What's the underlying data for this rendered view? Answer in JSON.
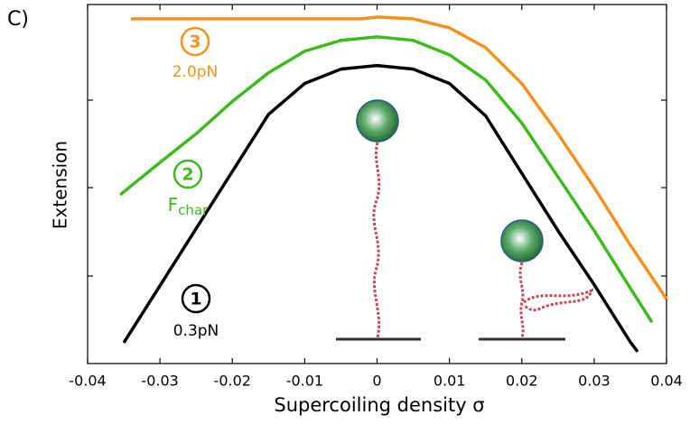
{
  "chart_data": {
    "type": "line",
    "panel_label": "C)",
    "x_label": "Supercoiling density σ",
    "y_label": "Extension",
    "xlim": [
      -0.04,
      0.04
    ],
    "xticks": [
      -0.04,
      -0.03,
      -0.02,
      -0.01,
      0,
      0.01,
      0.02,
      0.03,
      0.04
    ],
    "ylim": [
      0,
      1
    ],
    "series": [
      {
        "name": "0.3pN",
        "marker": "1",
        "color": "#000000",
        "x": [
          -0.035,
          -0.03,
          -0.025,
          -0.02,
          -0.015,
          -0.01,
          -0.005,
          0,
          0.005,
          0.01,
          0.015,
          0.02,
          0.025,
          0.03,
          0.035,
          0.036
        ],
        "values": [
          0.058,
          0.217,
          0.376,
          0.535,
          0.694,
          0.78,
          0.82,
          0.83,
          0.82,
          0.78,
          0.69,
          0.53,
          0.37,
          0.22,
          0.06,
          0.033
        ]
      },
      {
        "name": "F",
        "name_sub": "char",
        "marker": "2",
        "color": "#3dbb1e",
        "x": [
          -0.0355,
          -0.03,
          -0.025,
          -0.02,
          -0.015,
          -0.01,
          -0.005,
          0,
          0.005,
          0.01,
          0.015,
          0.02,
          0.025,
          0.03,
          0.035,
          0.038
        ],
        "values": [
          0.47,
          0.56,
          0.64,
          0.73,
          0.81,
          0.87,
          0.9,
          0.91,
          0.9,
          0.86,
          0.79,
          0.67,
          0.52,
          0.37,
          0.21,
          0.115
        ]
      },
      {
        "name": "2.0pN",
        "marker": "3",
        "color": "#f7911e",
        "x": [
          -0.034,
          -0.02,
          -0.01,
          -0.002,
          0,
          0.005,
          0.01,
          0.015,
          0.02,
          0.025,
          0.03,
          0.035,
          0.04
        ],
        "values": [
          0.96,
          0.96,
          0.96,
          0.96,
          0.965,
          0.96,
          0.935,
          0.88,
          0.78,
          0.64,
          0.49,
          0.33,
          0.18
        ]
      }
    ]
  }
}
